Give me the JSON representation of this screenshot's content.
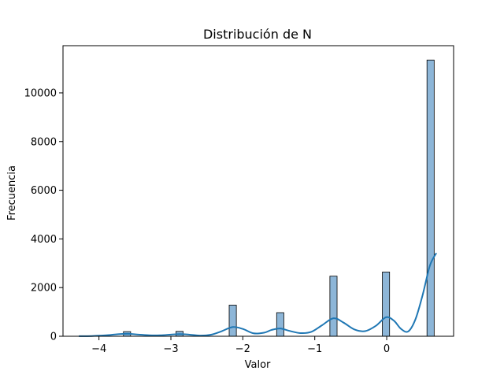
{
  "chart_data": {
    "type": "bar",
    "title": "Distribución de N",
    "xlabel": "Valor",
    "ylabel": "Frecuencia",
    "xlim": [
      -4.5,
      0.93
    ],
    "ylim": [
      0,
      11940
    ],
    "xticks": [
      -4,
      -3,
      -2,
      -1,
      0
    ],
    "xtick_labels": [
      "−4",
      "−3",
      "−2",
      "−1",
      "0"
    ],
    "yticks": [
      0,
      2000,
      4000,
      6000,
      8000,
      10000
    ],
    "ytick_labels": [
      "0",
      "2000",
      "4000",
      "6000",
      "8000",
      "10000"
    ],
    "grid": false,
    "legend": "none",
    "bar_color": "#8db6d8",
    "kde_color": "#1f77b4",
    "histogram": {
      "bin_width": 0.1,
      "bars": [
        {
          "x": -3.61,
          "value": 190
        },
        {
          "x": -2.88,
          "value": 200
        },
        {
          "x": -2.14,
          "value": 1280
        },
        {
          "x": -1.48,
          "value": 970
        },
        {
          "x": -0.74,
          "value": 2470
        },
        {
          "x": -0.01,
          "value": 2640
        },
        {
          "x": 0.61,
          "value": 11350
        }
      ]
    },
    "kde": {
      "x": [
        -4.28,
        -4.1,
        -3.9,
        -3.75,
        -3.6,
        -3.45,
        -3.3,
        -3.15,
        -3.0,
        -2.88,
        -2.75,
        -2.6,
        -2.45,
        -2.3,
        -2.14,
        -2.0,
        -1.85,
        -1.7,
        -1.6,
        -1.48,
        -1.35,
        -1.2,
        -1.05,
        -0.9,
        -0.74,
        -0.6,
        -0.45,
        -0.3,
        -0.15,
        -0.01,
        0.1,
        0.2,
        0.3,
        0.4,
        0.5,
        0.6,
        0.69
      ],
      "y": [
        5,
        10,
        40,
        80,
        100,
        70,
        40,
        40,
        70,
        90,
        70,
        30,
        60,
        200,
        380,
        300,
        120,
        150,
        260,
        320,
        220,
        130,
        180,
        450,
        740,
        560,
        280,
        210,
        430,
        780,
        640,
        300,
        200,
        700,
        1700,
        2900,
        3420
      ]
    }
  }
}
